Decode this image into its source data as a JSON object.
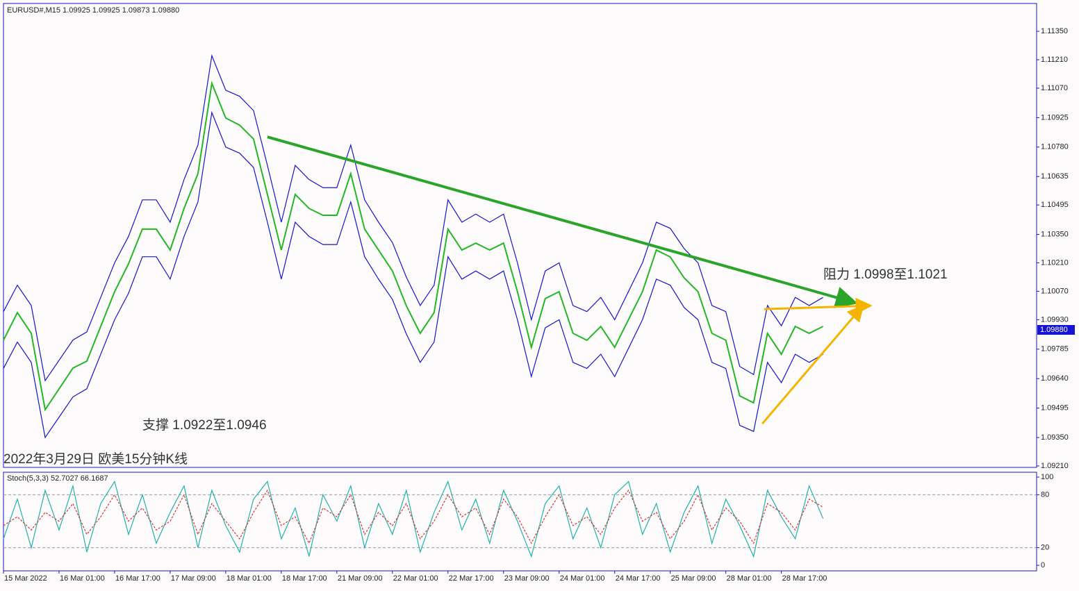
{
  "header": "EURUSD#,M15  1.09925 1.09925 1.09873 1.09880",
  "chart_data": [
    {
      "type": "line",
      "x": [
        0,
        8,
        16,
        24,
        32,
        40,
        48,
        56,
        64,
        72,
        80,
        88,
        96,
        104,
        112,
        120,
        128,
        136,
        144,
        152,
        160,
        168,
        176,
        184,
        192,
        200,
        208,
        216,
        224,
        232,
        240,
        248,
        256,
        264,
        272,
        280,
        288,
        296,
        304,
        312,
        320,
        328,
        336,
        344,
        352,
        360,
        368,
        376,
        384,
        392,
        400,
        408,
        416,
        424,
        432,
        440,
        448,
        456,
        464,
        472
      ],
      "xlim": [
        0,
        595
      ],
      "ylim": [
        1.09203,
        1.11487
      ],
      "yticks": [
        {
          "value": 1.0921,
          "label": "1.09210"
        },
        {
          "value": 1.0935,
          "label": "1.09350"
        },
        1.09495,
        {
          "value": 1.0964,
          "label": "1.09640"
        },
        1.09785,
        {
          "value": 1.0993,
          "label": "1.09930"
        },
        {
          "value": 1.1007,
          "label": "1.10070"
        },
        {
          "value": 1.1021,
          "label": "1.10210"
        },
        {
          "value": 1.1035,
          "label": "1.10350"
        },
        1.10495,
        1.10635,
        {
          "value": 1.1078,
          "label": "1.10780"
        },
        1.10925,
        {
          "value": 1.1107,
          "label": "1.11070"
        },
        {
          "value": 1.1121,
          "label": "1.11210"
        },
        {
          "value": 1.1135,
          "label": "1.11350"
        }
      ],
      "last_price": {
        "value": 1.0988,
        "label": "1.09880"
      },
      "series": [
        {
          "name": "Price",
          "color": "#22b822",
          "values": [
            1.09829,
            1.09965,
            1.09863,
            1.09487,
            1.09589,
            1.09692,
            1.09726,
            1.09897,
            1.10068,
            1.10205,
            1.10376,
            1.10376,
            1.10273,
            1.10478,
            1.10649,
            1.11094,
            1.10923,
            1.10888,
            1.1082,
            1.10547,
            1.10273,
            1.10547,
            1.10478,
            1.10444,
            1.10444,
            1.10649,
            1.10376,
            1.10273,
            1.1017,
            1.09999,
            1.09863,
            1.09965,
            1.10376,
            1.10273,
            1.10307,
            1.10273,
            1.10307,
            1.10068,
            1.09794,
            1.10034,
            1.10068,
            1.09863,
            1.09829,
            1.09897,
            1.09794,
            1.09931,
            1.10068,
            1.10273,
            1.10239,
            1.10136,
            1.10068,
            1.09863,
            1.09829,
            1.09555,
            1.09521,
            1.09863,
            1.0976,
            1.09897,
            1.09863,
            1.09897
          ]
        },
        {
          "name": "Upper",
          "color": "#1414d2",
          "values": [
            1.0997,
            1.101,
            1.1,
            1.0963,
            1.0973,
            1.0983,
            1.0987,
            1.1004,
            1.1021,
            1.1034,
            1.1052,
            1.1052,
            1.1041,
            1.1062,
            1.1079,
            1.1123,
            1.1106,
            1.1103,
            1.1096,
            1.1069,
            1.1041,
            1.1069,
            1.1062,
            1.1058,
            1.1058,
            1.1079,
            1.1052,
            1.1041,
            1.1031,
            1.1014,
            1.1,
            1.101,
            1.1052,
            1.1041,
            1.1045,
            1.1041,
            1.1045,
            1.1021,
            1.0993,
            1.1017,
            1.1021,
            1.1,
            1.0997,
            1.1004,
            1.0993,
            1.1007,
            1.1021,
            1.1041,
            1.1038,
            1.1028,
            1.1021,
            1.1,
            1.0997,
            1.097,
            1.0966,
            1.1,
            1.099,
            1.1004,
            1.1,
            1.1004
          ]
        },
        {
          "name": "Lower",
          "color": "#1414d2",
          "values": [
            1.0969,
            1.0982,
            1.0972,
            1.0935,
            1.0945,
            1.0955,
            1.0959,
            1.0976,
            1.0993,
            1.1006,
            1.1024,
            1.1024,
            1.1013,
            1.1034,
            1.1051,
            1.1095,
            1.1078,
            1.1075,
            1.1068,
            1.1041,
            1.1013,
            1.1041,
            1.1034,
            1.103,
            1.103,
            1.1051,
            1.1024,
            1.1013,
            1.1003,
            1.0986,
            1.0972,
            1.0982,
            1.1024,
            1.1013,
            1.1017,
            1.1013,
            1.1017,
            1.0993,
            1.0965,
            1.0989,
            1.0993,
            1.0972,
            1.0969,
            1.0976,
            1.0965,
            1.0979,
            1.0993,
            1.1013,
            1.101,
            1.0999,
            1.0993,
            1.0972,
            1.0969,
            1.0941,
            1.0938,
            1.0972,
            1.0962,
            1.0976,
            1.0972,
            1.0976
          ]
        }
      ],
      "trendlines": [
        {
          "color": "#2aa52a",
          "x": [
            152,
            489
          ],
          "values": [
            1.1083,
            1.10017
          ]
        },
        {
          "color": "#f5b400",
          "x": [
            438,
            498
          ],
          "values": [
            1.09982,
            1.09999
          ]
        },
        {
          "color": "#f5b400",
          "x": [
            437,
            494
          ],
          "values": [
            1.09418,
            1.09989
          ]
        }
      ],
      "annotations": [
        "阻力 1.0998至1.1021",
        "支撑 1.0922至1.0946",
        "2022年3月29日 欧美15分钟K线"
      ]
    },
    {
      "type": "line",
      "title": "Stoch(5,3,3) 52.7027 66.1687",
      "x": [
        0,
        8,
        16,
        24,
        32,
        40,
        48,
        56,
        64,
        72,
        80,
        88,
        96,
        104,
        112,
        120,
        128,
        136,
        144,
        152,
        160,
        168,
        176,
        184,
        192,
        200,
        208,
        216,
        224,
        232,
        240,
        248,
        256,
        264,
        272,
        280,
        288,
        296,
        304,
        312,
        320,
        328,
        336,
        344,
        352,
        360,
        368,
        376,
        384,
        392,
        400,
        408,
        416,
        424,
        432,
        440,
        448,
        456,
        464,
        472
      ],
      "xlim": [
        0,
        595
      ],
      "ylim": [
        -6.3,
        105.5
      ],
      "yticks": [
        0,
        20,
        80,
        100
      ],
      "xticks": [
        {
          "value": 0,
          "label": "15 Mar 2022"
        },
        {
          "value": 32,
          "label": "16 Mar 01:00"
        },
        {
          "value": 64,
          "label": "16 Mar 17:00"
        },
        {
          "value": 96,
          "label": "17 Mar 09:00"
        },
        {
          "value": 128,
          "label": "18 Mar 01:00"
        },
        {
          "value": 160,
          "label": "18 Mar 17:00"
        },
        {
          "value": 192,
          "label": "21 Mar 09:00"
        },
        {
          "value": 224,
          "label": "22 Mar 01:00"
        },
        {
          "value": 256,
          "label": "22 Mar 17:00"
        },
        {
          "value": 288,
          "label": "23 Mar 09:00"
        },
        {
          "value": 320,
          "label": "24 Mar 01:00"
        },
        {
          "value": 352,
          "label": "24 Mar 17:00"
        },
        {
          "value": 384,
          "label": "25 Mar 09:00"
        },
        {
          "value": 416,
          "label": "28 Mar 01:00"
        },
        {
          "value": 448,
          "label": "28 Mar 17:00"
        }
      ],
      "series": [
        {
          "name": "Main",
          "color": "#20b2aa",
          "values": [
            30,
            75,
            20,
            85,
            40,
            90,
            15,
            70,
            95,
            35,
            80,
            25,
            60,
            90,
            20,
            85,
            45,
            15,
            75,
            95,
            30,
            65,
            10,
            80,
            50,
            90,
            20,
            70,
            35,
            85,
            15,
            60,
            95,
            40,
            75,
            25,
            85,
            50,
            10,
            70,
            90,
            30,
            65,
            20,
            80,
            95,
            35,
            70,
            15,
            60,
            90,
            25,
            75,
            45,
            10,
            85,
            55,
            30,
            90,
            53
          ]
        },
        {
          "name": "Signal",
          "color": "#e03030",
          "values": [
            45,
            55,
            40,
            60,
            50,
            70,
            35,
            55,
            80,
            50,
            65,
            40,
            50,
            80,
            35,
            70,
            50,
            30,
            60,
            85,
            45,
            55,
            25,
            65,
            55,
            80,
            35,
            60,
            45,
            70,
            30,
            50,
            80,
            55,
            65,
            35,
            75,
            55,
            25,
            55,
            80,
            45,
            55,
            35,
            65,
            85,
            50,
            60,
            30,
            50,
            80,
            40,
            65,
            50,
            25,
            70,
            60,
            40,
            75,
            66
          ]
        }
      ]
    }
  ]
}
